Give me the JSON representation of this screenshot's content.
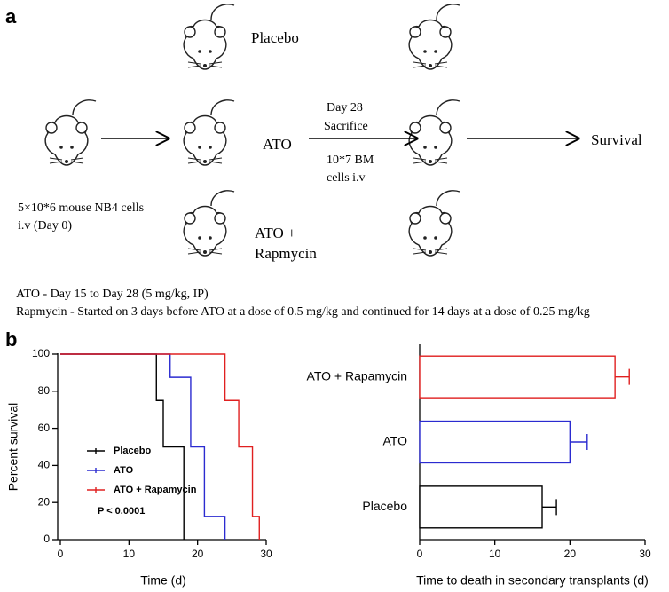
{
  "panel_a": {
    "label": "a",
    "treatments": {
      "placebo": "Placebo",
      "ato": "ATO",
      "combo_line1": "ATO +",
      "combo_line2": "Rapmycin"
    },
    "transfer": {
      "line1": "Day 28",
      "line2": "Sacrifice",
      "line3": "10*7 BM",
      "line4": "cells i.v"
    },
    "outcome": "Survival",
    "injection": {
      "line1": "5×10*6 mouse NB4 cells",
      "line2": "i.v (Day 0)"
    },
    "notes": [
      "ATO - Day 15 to Day 28 (5 mg/kg, IP)",
      "Rapmycin - Started on  3 days before ATO at a dose of 0.5 mg/kg and continued for 14 days at a dose of 0.25 mg/kg"
    ]
  },
  "panel_b": {
    "label": "b"
  },
  "chart_data": [
    {
      "type": "line",
      "y_label": "Percent survival",
      "x_label": "Time (d)",
      "xlim": [
        0,
        30
      ],
      "ylim": [
        0,
        100
      ],
      "xticks": [
        0,
        10,
        20,
        30
      ],
      "yticks": [
        0,
        20,
        40,
        60,
        80,
        100
      ],
      "legend": "lower left",
      "annotation": "P < 0.0001",
      "series": [
        {
          "name": "Placebo",
          "color": "#000000",
          "x": [
            0,
            14,
            14,
            15,
            15,
            18,
            18
          ],
          "values": [
            100,
            100,
            75,
            75,
            50,
            50,
            0
          ]
        },
        {
          "name": "ATO",
          "color": "#2b2bd0",
          "x": [
            0,
            16,
            16,
            19,
            19,
            21,
            21,
            24,
            24
          ],
          "values": [
            100,
            100,
            87.5,
            87.5,
            50,
            50,
            12.5,
            12.5,
            0
          ]
        },
        {
          "name": "ATO + Rapamycin",
          "color": "#e02020",
          "x": [
            0,
            24,
            24,
            26,
            26,
            28,
            28,
            29,
            29
          ],
          "values": [
            100,
            100,
            75,
            75,
            50,
            50,
            12.5,
            12.5,
            0
          ]
        }
      ]
    },
    {
      "type": "hbar",
      "x_label": "Time to death in secondary transplants (d)",
      "categories": [
        "ATO + Rapamycin",
        "ATO",
        "Placebo"
      ],
      "values": [
        26,
        20,
        16.3
      ],
      "errors": [
        1.9,
        2.3,
        1.9
      ],
      "colors": [
        "#e02020",
        "#2b2bd0",
        "#000000"
      ],
      "xlim": [
        0,
        30
      ],
      "xticks": [
        0,
        10,
        20,
        30
      ]
    }
  ]
}
